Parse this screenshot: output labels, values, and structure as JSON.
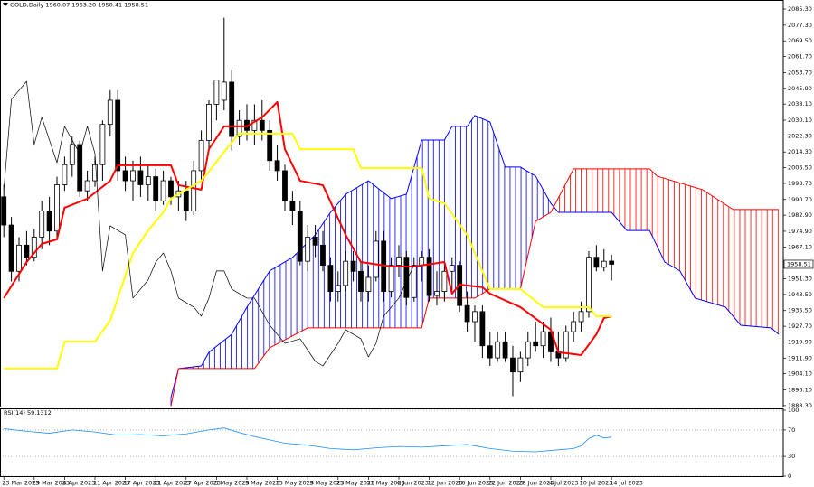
{
  "chart_data": [
    {
      "type": "candlestick",
      "title": "GOLD,Daily 1960.07 1963.20 1950.41 1958.51",
      "open": [
        1992,
        1978,
        1955,
        1968,
        1962,
        1972,
        1985,
        1975,
        1998,
        2008,
        2018,
        1995,
        2000,
        2008,
        2028,
        2040,
        2005,
        2000,
        2005,
        1998,
        2002,
        1990,
        2000,
        1992,
        1995,
        1985,
        2005,
        2020,
        2038,
        2040,
        2049,
        2022,
        2030,
        2025,
        2030,
        2025,
        2010,
        2005,
        1990,
        1985,
        1960,
        1972,
        1968,
        1958,
        1945,
        1948,
        1960,
        1955,
        1945,
        1952,
        1970,
        1945,
        1958,
        1962,
        1942,
        1958,
        1962,
        1943,
        1945,
        1955,
        1958,
        1938,
        1930,
        1935,
        1918,
        1912,
        1920,
        1912,
        1905,
        1912,
        1920,
        1918,
        1925,
        1915,
        1912,
        1925,
        1930,
        1935,
        1962,
        1957,
        1960.07
      ],
      "high": [
        1998,
        1982,
        1972,
        1975,
        1976,
        1990,
        1992,
        2002,
        2012,
        2022,
        2020,
        2005,
        2012,
        2030,
        2045,
        2045,
        2012,
        2010,
        2012,
        2008,
        2006,
        2005,
        2002,
        2000,
        2000,
        2010,
        2025,
        2040,
        2050,
        2081,
        2055,
        2035,
        2038,
        2038,
        2040,
        2030,
        2018,
        2008,
        1995,
        1990,
        1978,
        1978,
        1975,
        1962,
        1955,
        1965,
        1965,
        1960,
        1958,
        1975,
        1975,
        1962,
        1968,
        1965,
        1962,
        1965,
        1966,
        1955,
        1960,
        1962,
        1960,
        1945,
        1938,
        1938,
        1925,
        1925,
        1925,
        1918,
        1915,
        1925,
        1930,
        1930,
        1932,
        1925,
        1928,
        1935,
        1940,
        1965,
        1968,
        1966,
        1963.2
      ],
      "low": [
        1972,
        1950,
        1950,
        1958,
        1960,
        1966,
        1968,
        1972,
        1995,
        2002,
        1992,
        1990,
        1997,
        2000,
        2022,
        2000,
        1995,
        1990,
        1992,
        1990,
        1985,
        1988,
        1988,
        1985,
        1980,
        1983,
        2000,
        2015,
        2030,
        2035,
        2015,
        2018,
        2020,
        2018,
        2020,
        2005,
        2000,
        1985,
        1978,
        1958,
        1955,
        1962,
        1955,
        1940,
        1940,
        1945,
        1950,
        1940,
        1940,
        1950,
        1940,
        1942,
        1952,
        1938,
        1940,
        1950,
        1940,
        1938,
        1940,
        1945,
        1935,
        1925,
        1920,
        1912,
        1908,
        1910,
        1910,
        1893,
        1900,
        1908,
        1915,
        1912,
        1910,
        1908,
        1910,
        1920,
        1925,
        1932,
        1955,
        1955,
        1950.41
      ],
      "close": [
        1978,
        1955,
        1968,
        1962,
        1972,
        1985,
        1975,
        1998,
        2008,
        2018,
        1995,
        2000,
        2008,
        2028,
        2040,
        2005,
        2000,
        2005,
        1998,
        2002,
        1990,
        2000,
        1992,
        1995,
        1985,
        2005,
        2020,
        2038,
        2050,
        2049,
        2022,
        2030,
        2025,
        2030,
        2025,
        2010,
        2005,
        1990,
        1985,
        1960,
        1972,
        1968,
        1958,
        1945,
        1948,
        1960,
        1955,
        1945,
        1952,
        1970,
        1945,
        1958,
        1962,
        1942,
        1958,
        1962,
        1943,
        1945,
        1955,
        1958,
        1938,
        1930,
        1935,
        1918,
        1912,
        1920,
        1912,
        1905,
        1912,
        1920,
        1918,
        1925,
        1915,
        1912,
        1925,
        1930,
        1935,
        1962,
        1957,
        1960,
        1958.51
      ],
      "bull_color": "#ffffff",
      "bear_color": "#000000",
      "lines": [
        {
          "color": "#ff0000",
          "width": 2,
          "x": [
            0,
            3,
            5,
            7,
            8,
            11,
            14,
            15,
            22,
            23,
            26,
            27,
            29,
            32,
            34,
            36,
            37,
            39,
            42,
            45,
            47,
            51,
            54,
            58,
            59,
            60,
            63,
            64,
            68,
            72,
            73,
            76,
            78,
            79,
            80
          ],
          "values": [
            1941.7,
            1959.6,
            1968.6,
            1970.9,
            1986.6,
            1991.1,
            2000.0,
            2007.7,
            2007.7,
            1997.8,
            1995.6,
            2015.7,
            2027.0,
            2027.0,
            2031.5,
            2039.1,
            2015.7,
            2000.0,
            1997.8,
            1973.1,
            1959.6,
            1957.4,
            1957.4,
            1959.6,
            1943.9,
            1948.4,
            1947.1,
            1943.9,
            1937.2,
            1926.0,
            1914.8,
            1913.4,
            1923.7,
            1931.8,
            1932.7
          ]
        },
        {
          "color": "#ffff00",
          "width": 2,
          "x": [
            0,
            7,
            8,
            12,
            14,
            17,
            19,
            21,
            22,
            26,
            27,
            29,
            31,
            38,
            39,
            46,
            47,
            55,
            56,
            58,
            61,
            63,
            64,
            68,
            71,
            77,
            78,
            80
          ],
          "values": [
            1906.7,
            1906.7,
            1920.1,
            1920.1,
            1930.5,
            1964.1,
            1975.3,
            1984.3,
            1991.1,
            2000.0,
            2004.5,
            2014.4,
            2023.4,
            2023.4,
            2015.7,
            2015.7,
            2006.3,
            2006.3,
            1991.1,
            1988.8,
            1973.1,
            1955.2,
            1946.2,
            1946.2,
            1937.2,
            1937.2,
            1932.7,
            1932.7
          ]
        },
        {
          "color": "#000000",
          "width": 0.7,
          "x": [
            0,
            1,
            3,
            4,
            5,
            7,
            8,
            10,
            11,
            12,
            13,
            14,
            16,
            17,
            19,
            20,
            21,
            22,
            23,
            25,
            26,
            27,
            28,
            29,
            30,
            32,
            33,
            35,
            37,
            39,
            41,
            42,
            44,
            45,
            47,
            48,
            49,
            50,
            52,
            54
          ],
          "values": [
            1995.5,
            2040.4,
            2049.4,
            2018.0,
            2031.5,
            2009.0,
            2027.0,
            2013.5,
            2027.0,
            2013.5,
            1955.2,
            1977.6,
            1973.1,
            1941.7,
            1950.7,
            1959.6,
            1964.1,
            1955.2,
            1941.7,
            1937.2,
            1932.7,
            1941.7,
            1955.2,
            1955.2,
            1946.2,
            1941.7,
            1941.7,
            1928.2,
            1919.2,
            1921.5,
            1910.3,
            1908.0,
            1919.2,
            1926.0,
            1921.5,
            1912.5,
            1919.2,
            1932.7,
            1941.7,
            1958.3
          ]
        }
      ],
      "cloud": {
        "span_a": {
          "color": "#0000ff",
          "x": [
            22,
            23,
            26,
            27,
            30,
            32,
            35,
            38,
            41,
            43,
            45,
            48,
            51,
            53,
            55,
            58,
            59,
            61,
            62,
            64,
            66,
            68,
            70,
            72,
            73,
            80,
            82,
            85,
            87,
            89,
            91,
            95,
            97,
            101,
            102
          ],
          "values": [
            1892.3,
            1906.7,
            1908.0,
            1914.8,
            1923.7,
            1937.2,
            1955.2,
            1961.9,
            1973.1,
            1984.3,
            1993.3,
            2000.0,
            1991.1,
            1993.3,
            2020.2,
            2020.2,
            2027.0,
            2027.0,
            2032.4,
            2029.2,
            2006.8,
            2006.8,
            2002.3,
            1988.8,
            1984.3,
            1984.3,
            1975.3,
            1975.3,
            1959.6,
            1955.2,
            1941.7,
            1937.2,
            1928.2,
            1926.9,
            1923.7
          ]
        },
        "span_b": {
          "color": "#ff0000",
          "x": [
            22,
            23,
            33,
            35,
            40,
            55,
            56,
            62,
            64,
            68,
            70,
            72,
            75,
            85,
            86,
            92,
            96,
            102
          ],
          "values": [
            1888.0,
            1906.7,
            1906.7,
            1917.0,
            1926.9,
            1926.9,
            1941.7,
            1941.7,
            1946.2,
            1946.2,
            1979.8,
            1984.3,
            2005.9,
            2005.9,
            2002.3,
            1995.5,
            1985.7,
            1985.7
          ]
        }
      },
      "xlim": [
        -0.5,
        102.6
      ],
      "xticks": [
        {
          "value": 0,
          "label": "23 Mar 2023"
        },
        {
          "value": 4,
          "label": "29 Mar 2023"
        },
        {
          "value": 8,
          "label": "4 Apr 2023"
        },
        {
          "value": 12,
          "label": "11 Apr 2023"
        },
        {
          "value": 16,
          "label": "17 Apr 2023"
        },
        {
          "value": 20,
          "label": "21 Apr 2023"
        },
        {
          "value": 24,
          "label": "27 Apr 2023"
        },
        {
          "value": 28,
          "label": "3 May 2023"
        },
        {
          "value": 32,
          "label": "9 May 2023"
        },
        {
          "value": 36,
          "label": "15 May 2023"
        },
        {
          "value": 40,
          "label": "19 May 2023"
        },
        {
          "value": 44,
          "label": "25 May 2023"
        },
        {
          "value": 48,
          "label": "31 May 2023"
        },
        {
          "value": 52,
          "label": "6 Jun 2023"
        },
        {
          "value": 56,
          "label": "12 Jun 2023"
        },
        {
          "value": 60,
          "label": "16 Jun 2023"
        },
        {
          "value": 64,
          "label": "22 Jun 2023"
        },
        {
          "value": 68,
          "label": "28 Jun 2023"
        },
        {
          "value": 72,
          "label": "4 Jul 2023"
        },
        {
          "value": 76,
          "label": "10 Jul 2023"
        },
        {
          "value": 80,
          "label": "14 Jul 2023"
        }
      ],
      "ylim": [
        1887.8,
        2089.8
      ],
      "yticks": [
        {
          "value": 2085.3,
          "label": "2085.30"
        },
        {
          "value": 2077.3,
          "label": "2077.30"
        },
        {
          "value": 2069.5,
          "label": "2069.50"
        },
        {
          "value": 2061.7,
          "label": "2061.70"
        },
        {
          "value": 2053.7,
          "label": "2053.70"
        },
        {
          "value": 2045.9,
          "label": "2045.90"
        },
        {
          "value": 2038.1,
          "label": "2038.10"
        },
        {
          "value": 2030.1,
          "label": "2030.10"
        },
        {
          "value": 2022.3,
          "label": "2022.30"
        },
        {
          "value": 2014.3,
          "label": "2014.30"
        },
        {
          "value": 2006.5,
          "label": "2006.50"
        },
        {
          "value": 1998.7,
          "label": "1998.70"
        },
        {
          "value": 1990.7,
          "label": "1990.70"
        },
        {
          "value": 1982.9,
          "label": "1982.90"
        },
        {
          "value": 1974.9,
          "label": "1974.90"
        },
        {
          "value": 1967.1,
          "label": "1967.10"
        },
        {
          "value": 1951.3,
          "label": "1951.30"
        },
        {
          "value": 1943.5,
          "label": "1943.50"
        },
        {
          "value": 1935.5,
          "label": "1935.50"
        },
        {
          "value": 1927.7,
          "label": "1927.70"
        },
        {
          "value": 1919.9,
          "label": "1919.90"
        },
        {
          "value": 1911.9,
          "label": "1911.90"
        },
        {
          "value": 1904.1,
          "label": "1904.10"
        },
        {
          "value": 1896.1,
          "label": "1896.10"
        },
        {
          "value": 1888.3,
          "label": "1888.30"
        }
      ],
      "grid": false
    },
    {
      "type": "line",
      "title": "RSI(14) 59.1312",
      "color": "#1e90ff",
      "x": [
        0,
        3,
        6,
        9,
        12,
        15,
        18,
        21,
        24,
        27,
        29,
        31,
        33,
        35,
        37,
        40,
        43,
        46,
        49,
        52,
        55,
        58,
        61,
        64,
        67,
        70,
        73,
        75,
        76,
        77,
        78,
        79,
        80
      ],
      "values": [
        72,
        68,
        65,
        70,
        67,
        62,
        63,
        61,
        64,
        70,
        73,
        66,
        60,
        55,
        50,
        47,
        42,
        40,
        43,
        45,
        44,
        46,
        48,
        42,
        38,
        37,
        40,
        42,
        46,
        57,
        62,
        58,
        59.1312
      ],
      "xlim": [
        -0.5,
        102.6
      ],
      "ylim": [
        0,
        100
      ],
      "yticks": [
        100,
        70,
        30,
        0
      ],
      "grid": true
    }
  ]
}
